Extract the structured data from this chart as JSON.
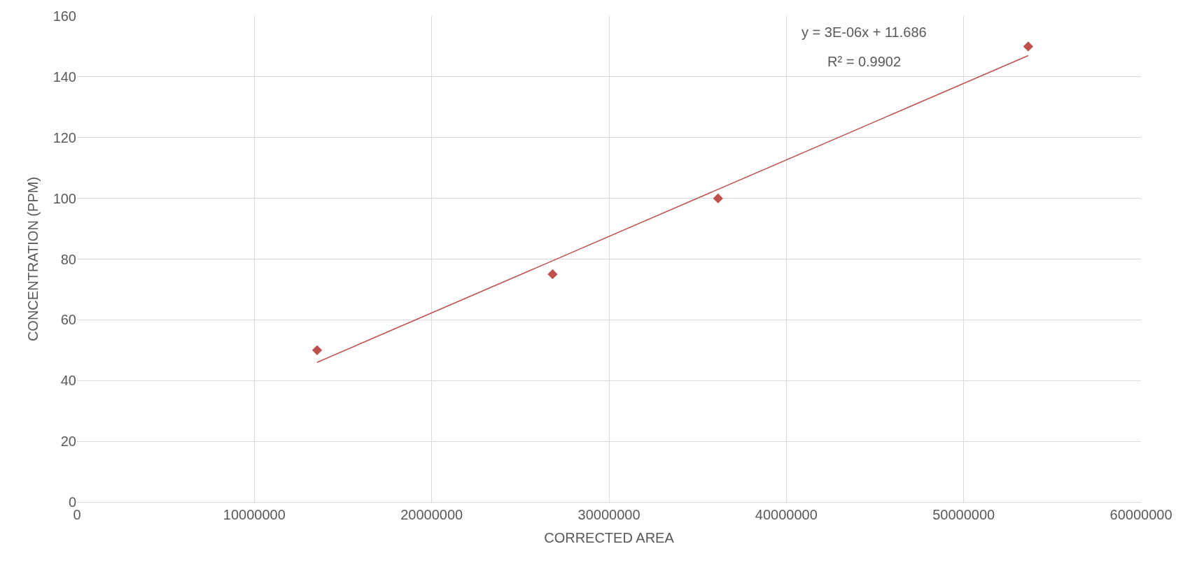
{
  "chart_data": {
    "type": "scatter",
    "xlabel": "CORRECTED AREA",
    "ylabel": "CONCENTRATION (PPM)",
    "series": [
      {
        "color": "#c0504d",
        "marker": "diamond",
        "x": [
          13540000,
          26820000,
          36150000,
          53640000
        ],
        "values": [
          50,
          75,
          100,
          150
        ]
      },
      {
        "type": "line",
        "color": "#c0504d",
        "x": [
          13540000,
          53640000
        ],
        "values": [
          46,
          147
        ]
      }
    ],
    "annotations": [
      "y = 3E-06x + 11.686",
      "R² = 0.9902"
    ],
    "xlim": [
      0,
      60000000
    ],
    "xticks": [
      0,
      10000000,
      20000000,
      30000000,
      40000000,
      50000000,
      60000000
    ],
    "ylim": [
      0,
      160
    ],
    "yticks": [
      0,
      20,
      40,
      60,
      80,
      100,
      120,
      140,
      160
    ],
    "grid": true
  }
}
